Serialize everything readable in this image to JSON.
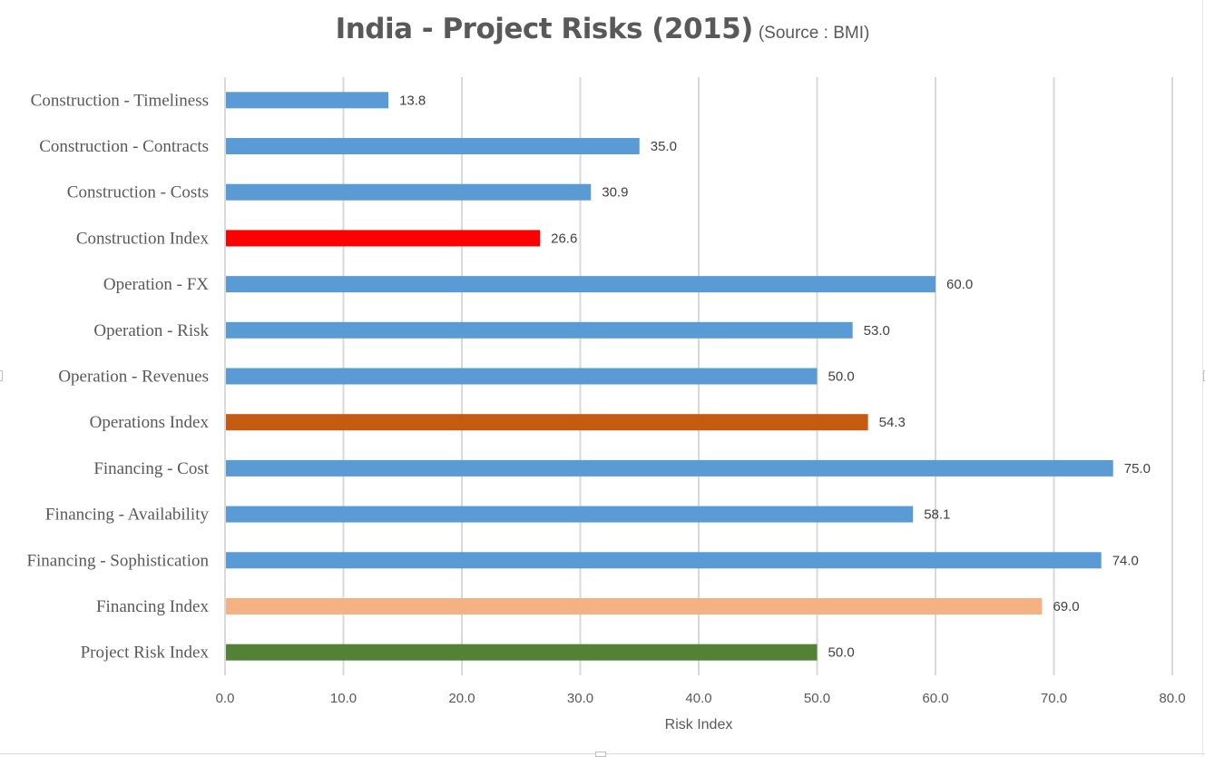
{
  "chart_data": {
    "type": "bar",
    "orientation": "horizontal",
    "title": "India - Project Risks (2015)",
    "subtitle": "(Source : BMI)",
    "xlabel": "Risk Index",
    "ylabel": "",
    "xlim": [
      0,
      80
    ],
    "x_ticks": [
      0,
      10,
      20,
      30,
      40,
      50,
      60,
      70,
      80
    ],
    "x_tick_labels": [
      "0.0",
      "10.0",
      "20.0",
      "30.0",
      "40.0",
      "50.0",
      "60.0",
      "70.0",
      "80.0"
    ],
    "grid": "vertical",
    "legend": "none",
    "categories": [
      "Construction - Timeliness",
      "Construction - Contracts",
      "Construction - Costs",
      "Construction Index",
      "Operation - FX",
      "Operation - Risk",
      "Operation - Revenues",
      "Operations Index",
      "Financing - Cost",
      "Financing - Availability",
      "Financing - Sophistication",
      "Financing Index",
      "Project Risk Index"
    ],
    "values": [
      13.8,
      35.0,
      30.9,
      26.6,
      60.0,
      53.0,
      50.0,
      54.3,
      75.0,
      58.1,
      74.0,
      69.0,
      50.0
    ],
    "data_labels": [
      "13.8",
      "35.0",
      "30.9",
      "26.6",
      "60.0",
      "53.0",
      "50.0",
      "54.3",
      "75.0",
      "58.1",
      "74.0",
      "69.0",
      "50.0"
    ],
    "colors": [
      "#5b9bd5",
      "#5b9bd5",
      "#5b9bd5",
      "#ff0000",
      "#5b9bd5",
      "#5b9bd5",
      "#5b9bd5",
      "#c55a11",
      "#5b9bd5",
      "#5b9bd5",
      "#5b9bd5",
      "#f4b183",
      "#538135"
    ]
  },
  "style": {
    "gridline_color": "#d9d9d9",
    "text_color": "#595959"
  }
}
